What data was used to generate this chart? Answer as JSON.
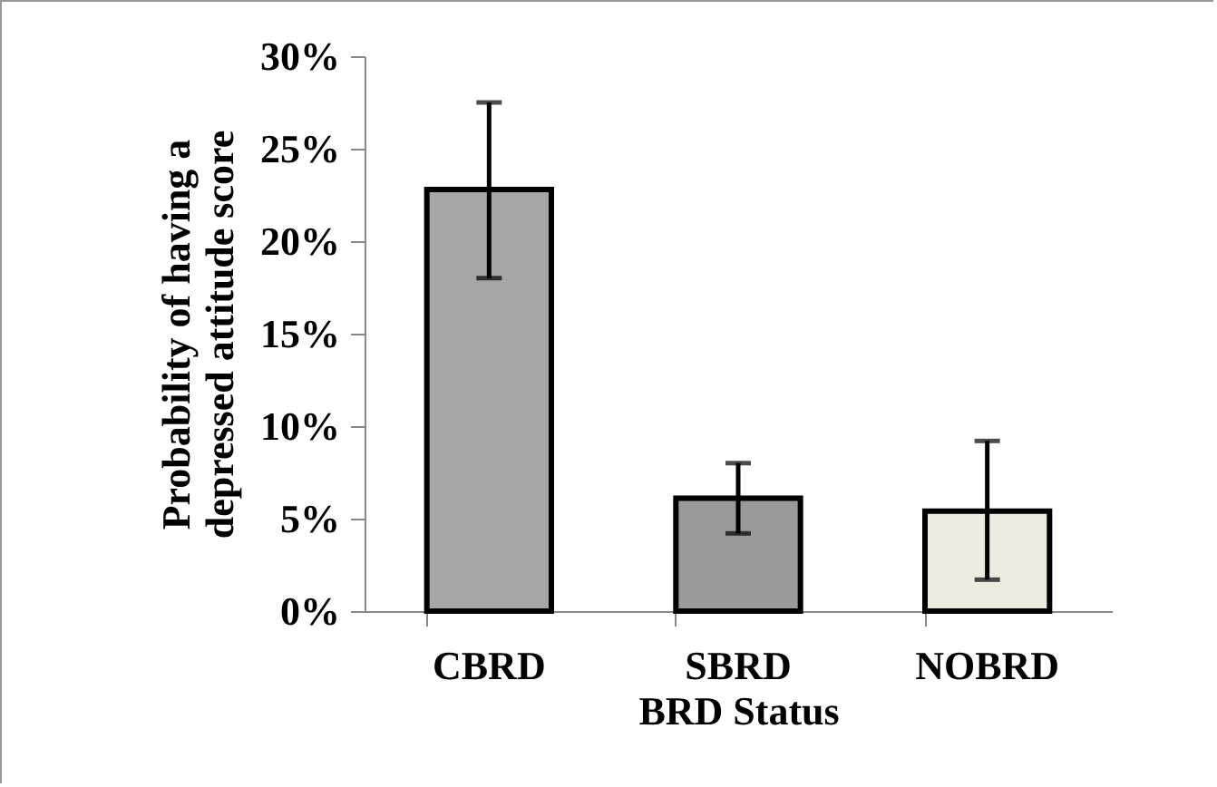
{
  "chart_data": {
    "type": "bar",
    "xlabel": "BRD Status",
    "ylabel": "Probability of having a depressed attitude score",
    "categories": [
      "CBRD",
      "SBRD",
      "NOBRD"
    ],
    "values": [
      22.8,
      6.1,
      5.4
    ],
    "colors": [
      "#a6a6a6",
      "#9a9a9a",
      "#eeebe0"
    ],
    "errors": [
      [
        18.0,
        27.5
      ],
      [
        4.2,
        8.0
      ],
      [
        1.7,
        9.2
      ]
    ],
    "ylim": [
      0,
      30
    ],
    "yticks": [
      {
        "value": 0,
        "label": "0%"
      },
      {
        "value": 5,
        "label": "5%"
      },
      {
        "value": 10,
        "label": "10%"
      },
      {
        "value": 15,
        "label": "15%"
      },
      {
        "value": 20,
        "label": "20%"
      },
      {
        "value": 25,
        "label": "25%"
      },
      {
        "value": 30,
        "label": "30%"
      }
    ],
    "grid": false,
    "legend": false
  }
}
